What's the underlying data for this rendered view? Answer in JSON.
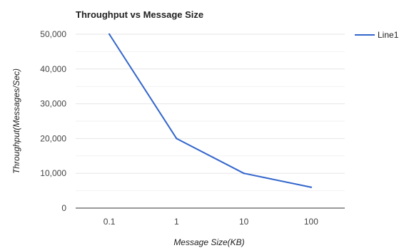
{
  "chart_data": {
    "type": "line",
    "title": "Throughput vs Message Size",
    "xlabel": "Message Size(KB)",
    "ylabel": "Throughput(Messages/Sec)",
    "categories": [
      "0.1",
      "1",
      "10",
      "100"
    ],
    "series": [
      {
        "name": "Line1",
        "values": [
          50000,
          20000,
          10000,
          6000
        ]
      }
    ],
    "ylim": [
      0,
      50000
    ],
    "yticks": [
      "0",
      "10,000",
      "20,000",
      "30,000",
      "40,000",
      "50,000"
    ],
    "grid": true,
    "legend_position": "right",
    "colors": {
      "series": "#3366cc",
      "grid": "#e6e6e6",
      "baseline": "#333333"
    }
  }
}
